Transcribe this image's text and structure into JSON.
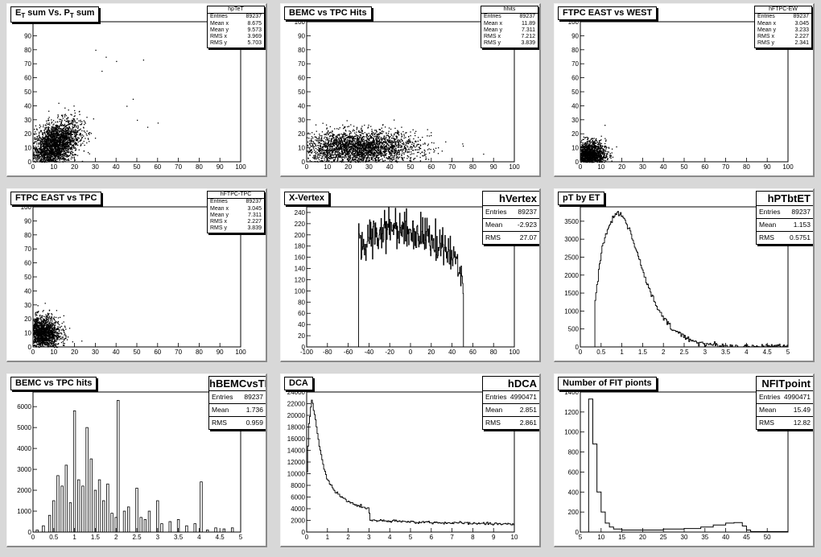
{
  "charts": [
    {
      "title_main": "E",
      "title_sub1": "T",
      "title_mid": " sum Vs. P",
      "title_sub2": "T",
      "title_end": " sum",
      "stats": {
        "name": "hpTeT",
        "size": "small",
        "rows": [
          [
            "Entries",
            "89237"
          ],
          [
            "Mean x",
            "8.675"
          ],
          [
            "Mean y",
            "9.573"
          ],
          [
            "RMS x",
            "3.969"
          ],
          [
            "RMS y",
            "5.703"
          ]
        ]
      },
      "chart_data": {
        "type": "scatter",
        "xlim": [
          0,
          100
        ],
        "ylim": [
          0,
          100
        ],
        "xticks": [
          0,
          10,
          20,
          30,
          40,
          50,
          60,
          70,
          80,
          90,
          100
        ],
        "yticks": [
          0,
          10,
          20,
          30,
          40,
          50,
          60,
          70,
          80,
          90,
          100
        ],
        "clusters": [
          {
            "cx": 10,
            "cy": 12,
            "sx": 6,
            "sy": 8,
            "n": 2600,
            "rot": 0.5
          }
        ],
        "outliers": [
          [
            30,
            80
          ],
          [
            35,
            75
          ],
          [
            40,
            72
          ],
          [
            53,
            73
          ],
          [
            50,
            30
          ],
          [
            55,
            25
          ],
          [
            60,
            28
          ],
          [
            45,
            40
          ],
          [
            48,
            45
          ],
          [
            33,
            65
          ]
        ]
      }
    },
    {
      "title_main": "BEMC vs TPC Hits",
      "stats": {
        "name": "hhits",
        "size": "small",
        "rows": [
          [
            "Entries",
            "89237"
          ],
          [
            "Mean x",
            "11.89"
          ],
          [
            "Mean y",
            "7.311"
          ],
          [
            "RMS x",
            "7.212"
          ],
          [
            "RMS y",
            "3.839"
          ]
        ]
      },
      "chart_data": {
        "type": "scatter",
        "xlim": [
          0,
          100
        ],
        "ylim": [
          0,
          100
        ],
        "xticks": [
          0,
          10,
          20,
          30,
          40,
          50,
          60,
          70,
          80,
          90,
          100
        ],
        "yticks": [
          0,
          10,
          20,
          30,
          40,
          50,
          60,
          70,
          80,
          90,
          100
        ],
        "clusters": [
          {
            "cx": 25,
            "cy": 10,
            "sx": 14,
            "sy": 6,
            "n": 2800,
            "rot": 0.05
          }
        ],
        "outliers": [
          [
            62,
            10
          ],
          [
            65,
            8
          ],
          [
            60,
            14
          ]
        ]
      }
    },
    {
      "title_main": "FTPC EAST vs WEST",
      "stats": {
        "name": "hFTPC-EW",
        "size": "small",
        "rows": [
          [
            "Entries",
            "89237"
          ],
          [
            "Mean x",
            "3.045"
          ],
          [
            "Mean y",
            "3.233"
          ],
          [
            "RMS x",
            "2.227"
          ],
          [
            "RMS y",
            "2.341"
          ]
        ]
      },
      "chart_data": {
        "type": "scatter",
        "xlim": [
          0,
          100
        ],
        "ylim": [
          0,
          100
        ],
        "xticks": [
          0,
          10,
          20,
          30,
          40,
          50,
          60,
          70,
          80,
          90,
          100
        ],
        "yticks": [
          0,
          10,
          20,
          30,
          40,
          50,
          60,
          70,
          80,
          90,
          100
        ],
        "clusters": [
          {
            "cx": 4,
            "cy": 5,
            "sx": 4,
            "sy": 5,
            "n": 1800,
            "rot": 0
          }
        ],
        "outliers": []
      }
    },
    {
      "title_main": "FTPC EAST vs TPC",
      "stats": {
        "name": "hFTPC-TPC",
        "size": "small",
        "rows": [
          [
            "Entries",
            "89237"
          ],
          [
            "Mean x",
            "3.045"
          ],
          [
            "Mean y",
            "7.311"
          ],
          [
            "RMS x",
            "2.227"
          ],
          [
            "RMS y",
            "3.839"
          ]
        ]
      },
      "chart_data": {
        "type": "scatter",
        "xlim": [
          0,
          100
        ],
        "ylim": [
          0,
          100
        ],
        "xticks": [
          0,
          10,
          20,
          30,
          40,
          50,
          60,
          70,
          80,
          90,
          100
        ],
        "yticks": [
          0,
          10,
          20,
          30,
          40,
          50,
          60,
          70,
          80,
          90,
          100
        ],
        "clusters": [
          {
            "cx": 4,
            "cy": 10,
            "sx": 4.5,
            "sy": 6,
            "n": 1800,
            "rot": 0
          }
        ],
        "outliers": []
      }
    },
    {
      "title_main": "X-Vertex",
      "stats": {
        "name": "hVertex",
        "size": "large",
        "rows": [
          [
            "Entries",
            "89237"
          ],
          [
            "Mean",
            "-2.923"
          ],
          [
            "RMS",
            "27.07"
          ]
        ]
      },
      "chart_data": {
        "type": "hist",
        "xlim": [
          -100,
          100
        ],
        "ylim": [
          0,
          250
        ],
        "xticks": [
          -100,
          -80,
          -60,
          -40,
          -20,
          0,
          20,
          40,
          60,
          80,
          100
        ],
        "yticks": [
          0,
          20,
          40,
          60,
          80,
          100,
          120,
          140,
          160,
          180,
          200,
          220,
          240
        ],
        "points": [
          [
            -50,
            0
          ],
          [
            -50,
            175
          ],
          [
            -45,
            185
          ],
          [
            -40,
            195
          ],
          [
            -35,
            200
          ],
          [
            -30,
            205
          ],
          [
            -25,
            210
          ],
          [
            -20,
            215
          ],
          [
            -15,
            215
          ],
          [
            -10,
            212
          ],
          [
            -5,
            210
          ],
          [
            0,
            205
          ],
          [
            5,
            205
          ],
          [
            10,
            200
          ],
          [
            15,
            198
          ],
          [
            20,
            192
          ],
          [
            25,
            185
          ],
          [
            30,
            178
          ],
          [
            35,
            172
          ],
          [
            40,
            160
          ],
          [
            45,
            148
          ],
          [
            50,
            135
          ],
          [
            51,
            90
          ],
          [
            51,
            0
          ]
        ],
        "noise": 18
      }
    },
    {
      "title_main": "pT by ET",
      "stats": {
        "name": "hPTbtET",
        "size": "large",
        "rows": [
          [
            "Entries",
            "89237"
          ],
          [
            "Mean",
            "1.153"
          ],
          [
            "RMS",
            "0.5751"
          ]
        ]
      },
      "chart_data": {
        "type": "hist",
        "xlim": [
          0,
          5
        ],
        "ylim": [
          0,
          3900
        ],
        "xticks": [
          0,
          0.5,
          1,
          1.5,
          2,
          2.5,
          3,
          3.5,
          4,
          4.5,
          5
        ],
        "yticks": [
          0,
          500,
          1000,
          1500,
          2000,
          2500,
          3000,
          3500
        ],
        "points": [
          [
            0.35,
            0
          ],
          [
            0.35,
            1200
          ],
          [
            0.45,
            2200
          ],
          [
            0.55,
            2900
          ],
          [
            0.7,
            3400
          ],
          [
            0.85,
            3700
          ],
          [
            0.95,
            3750
          ],
          [
            1.05,
            3600
          ],
          [
            1.2,
            3200
          ],
          [
            1.4,
            2500
          ],
          [
            1.6,
            1800
          ],
          [
            1.8,
            1200
          ],
          [
            2.0,
            800
          ],
          [
            2.2,
            520
          ],
          [
            2.5,
            280
          ],
          [
            2.8,
            140
          ],
          [
            3.0,
            80
          ],
          [
            3.3,
            40
          ],
          [
            3.6,
            20
          ],
          [
            4.0,
            8
          ],
          [
            4.5,
            4
          ],
          [
            5.0,
            0
          ]
        ],
        "noise": 40
      }
    },
    {
      "title_main": "BEMC vs TPC hits",
      "stats": {
        "name": "hBEMCvsTPChits",
        "size": "large",
        "rows": [
          [
            "Entries",
            "89237"
          ],
          [
            "Mean",
            "1.736"
          ],
          [
            "RMS",
            "0.959"
          ]
        ]
      },
      "chart_data": {
        "type": "hist",
        "xlim": [
          0,
          5
        ],
        "ylim": [
          0,
          6700
        ],
        "xticks": [
          0,
          0.5,
          1,
          1.5,
          2,
          2.5,
          3,
          3.5,
          4,
          4.5,
          5
        ],
        "yticks": [
          0,
          1000,
          2000,
          3000,
          4000,
          5000,
          6000
        ],
        "spikes": [
          [
            0.1,
            100
          ],
          [
            0.25,
            300
          ],
          [
            0.4,
            800
          ],
          [
            0.5,
            1500
          ],
          [
            0.6,
            2700
          ],
          [
            0.7,
            2200
          ],
          [
            0.8,
            3200
          ],
          [
            0.9,
            1400
          ],
          [
            1.0,
            5800
          ],
          [
            1.1,
            2500
          ],
          [
            1.2,
            2200
          ],
          [
            1.3,
            5000
          ],
          [
            1.4,
            3500
          ],
          [
            1.5,
            2000
          ],
          [
            1.6,
            2500
          ],
          [
            1.7,
            1500
          ],
          [
            1.8,
            2300
          ],
          [
            1.9,
            900
          ],
          [
            2.0,
            700
          ],
          [
            2.05,
            6300
          ],
          [
            2.2,
            1000
          ],
          [
            2.3,
            1200
          ],
          [
            2.5,
            2100
          ],
          [
            2.6,
            700
          ],
          [
            2.7,
            600
          ],
          [
            2.8,
            1000
          ],
          [
            3.0,
            1500
          ],
          [
            3.1,
            400
          ],
          [
            3.3,
            500
          ],
          [
            3.5,
            600
          ],
          [
            3.7,
            300
          ],
          [
            3.9,
            400
          ],
          [
            4.05,
            2400
          ],
          [
            4.2,
            100
          ],
          [
            4.4,
            200
          ],
          [
            4.6,
            150
          ],
          [
            4.8,
            200
          ]
        ],
        "noise": 0
      }
    },
    {
      "title_main": "DCA",
      "stats": {
        "name": "hDCA",
        "size": "large",
        "rows": [
          [
            "Entries",
            "4990471"
          ],
          [
            "Mean",
            "2.851"
          ],
          [
            "RMS",
            "2.861"
          ]
        ]
      },
      "chart_data": {
        "type": "hist",
        "xlim": [
          0,
          10
        ],
        "ylim": [
          0,
          24000
        ],
        "xticks": [
          0,
          1,
          2,
          3,
          4,
          5,
          6,
          7,
          8,
          9,
          10
        ],
        "yticks": [
          0,
          2000,
          4000,
          6000,
          8000,
          10000,
          12000,
          14000,
          16000,
          18000,
          20000,
          22000,
          24000
        ],
        "points": [
          [
            0,
            0
          ],
          [
            0,
            8000
          ],
          [
            0.1,
            18000
          ],
          [
            0.25,
            22800
          ],
          [
            0.4,
            20000
          ],
          [
            0.6,
            15000
          ],
          [
            0.8,
            11500
          ],
          [
            1.0,
            9000
          ],
          [
            1.3,
            7300
          ],
          [
            1.6,
            6200
          ],
          [
            2.0,
            5200
          ],
          [
            2.5,
            4500
          ],
          [
            3.0,
            4000
          ],
          [
            3.05,
            2000
          ],
          [
            4.0,
            1850
          ],
          [
            5.0,
            1750
          ],
          [
            6.0,
            1650
          ],
          [
            7.0,
            1550
          ],
          [
            8.0,
            1500
          ],
          [
            9.0,
            1420
          ],
          [
            10.0,
            1380
          ]
        ],
        "noise": 120
      }
    },
    {
      "title_main": "Number of FIT pionts",
      "stats": {
        "name": "NFITpoint",
        "size": "large",
        "rows": [
          [
            "Entries",
            "4990471"
          ],
          [
            "Mean",
            "15.49"
          ],
          [
            "RMS",
            "12.82"
          ]
        ]
      },
      "chart_data": {
        "type": "hist",
        "xlim": [
          5,
          55
        ],
        "ylim": [
          0,
          1400
        ],
        "xticks": [
          5,
          10,
          15,
          20,
          25,
          30,
          35,
          40,
          45,
          50
        ],
        "yticks": [
          0,
          200,
          400,
          600,
          800,
          1000,
          1200,
          1400
        ],
        "steps": [
          [
            7,
            1330
          ],
          [
            8,
            880
          ],
          [
            9,
            400
          ],
          [
            10,
            200
          ],
          [
            11,
            90
          ],
          [
            12,
            50
          ],
          [
            13,
            30
          ],
          [
            15,
            20
          ],
          [
            20,
            20
          ],
          [
            25,
            30
          ],
          [
            30,
            35
          ],
          [
            34,
            50
          ],
          [
            37,
            70
          ],
          [
            40,
            90
          ],
          [
            42,
            95
          ],
          [
            44,
            60
          ],
          [
            45,
            20
          ],
          [
            46,
            5
          ],
          [
            55,
            0
          ]
        ],
        "noise": 0
      }
    }
  ]
}
